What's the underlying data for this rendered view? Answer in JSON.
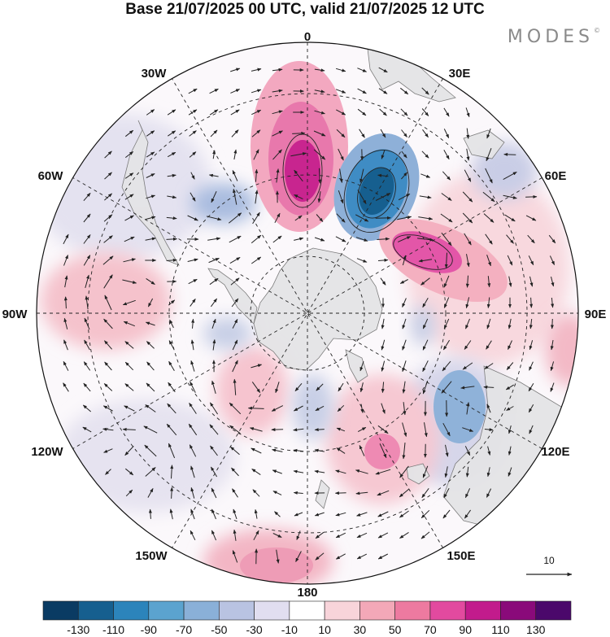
{
  "title": "Base 21/07/2025 00 UTC, valid 21/07/2025 12 UTC",
  "brand": "MODES",
  "brand_mark": "©",
  "longitude_labels": {
    "top": "0",
    "top_right": "30E",
    "right_upper": "60E",
    "right": "90E",
    "right_lower": "120E",
    "bottom_right": "150E",
    "bottom": "180",
    "bottom_left": "150W",
    "left_lower": "120W",
    "left": "90W",
    "left_upper": "60W",
    "top_left": "30W"
  },
  "vector_reference": {
    "label": "10",
    "magnitude": 10
  },
  "colorbar": {
    "ticks": [
      "-130",
      "-110",
      "-90",
      "-70",
      "-50",
      "-30",
      "-10",
      "10",
      "30",
      "50",
      "70",
      "90",
      "110",
      "130"
    ],
    "colors": [
      "#0a3b63",
      "#165f8f",
      "#2c84bb",
      "#5ba3cf",
      "#8ab0d8",
      "#b9c3e2",
      "#e1def0",
      "#ffffff",
      "#f8d4da",
      "#f3a8b8",
      "#ed7aa0",
      "#e24a9f",
      "#c21b8c",
      "#8a0a7a",
      "#4b086b"
    ]
  },
  "chart_data": {
    "type": "polar-stereographic-map",
    "hemisphere": "south",
    "field": "anomaly (shaded) with wind vectors",
    "levels": [
      -130,
      -110,
      -90,
      -70,
      -50,
      -30,
      -10,
      10,
      30,
      50,
      70,
      90,
      110,
      130
    ],
    "longitudes": [
      "0",
      "30E",
      "60E",
      "90E",
      "120E",
      "150E",
      "180",
      "150W",
      "120W",
      "90W",
      "60W",
      "30W"
    ],
    "anomaly_centers": [
      {
        "lon": 0,
        "lat": -50,
        "value": 110,
        "sign": "positive"
      },
      {
        "lon": 30,
        "lat": -55,
        "value": -110,
        "sign": "negative"
      },
      {
        "lon": 68,
        "lat": -55,
        "value": 70,
        "sign": "positive"
      },
      {
        "lon": 115,
        "lat": -50,
        "value": -50,
        "sign": "negative"
      },
      {
        "lon": 160,
        "lat": -55,
        "value": 50,
        "sign": "positive"
      },
      {
        "lon": 178,
        "lat": -45,
        "value": 50,
        "sign": "positive"
      },
      {
        "lon": -140,
        "lat": -60,
        "value": 30,
        "sign": "positive"
      },
      {
        "lon": -92,
        "lat": -45,
        "value": 30,
        "sign": "positive"
      },
      {
        "lon": -42,
        "lat": -50,
        "value": -30,
        "sign": "negative"
      },
      {
        "lon": -25,
        "lat": -55,
        "value": 50,
        "sign": "positive"
      }
    ]
  }
}
